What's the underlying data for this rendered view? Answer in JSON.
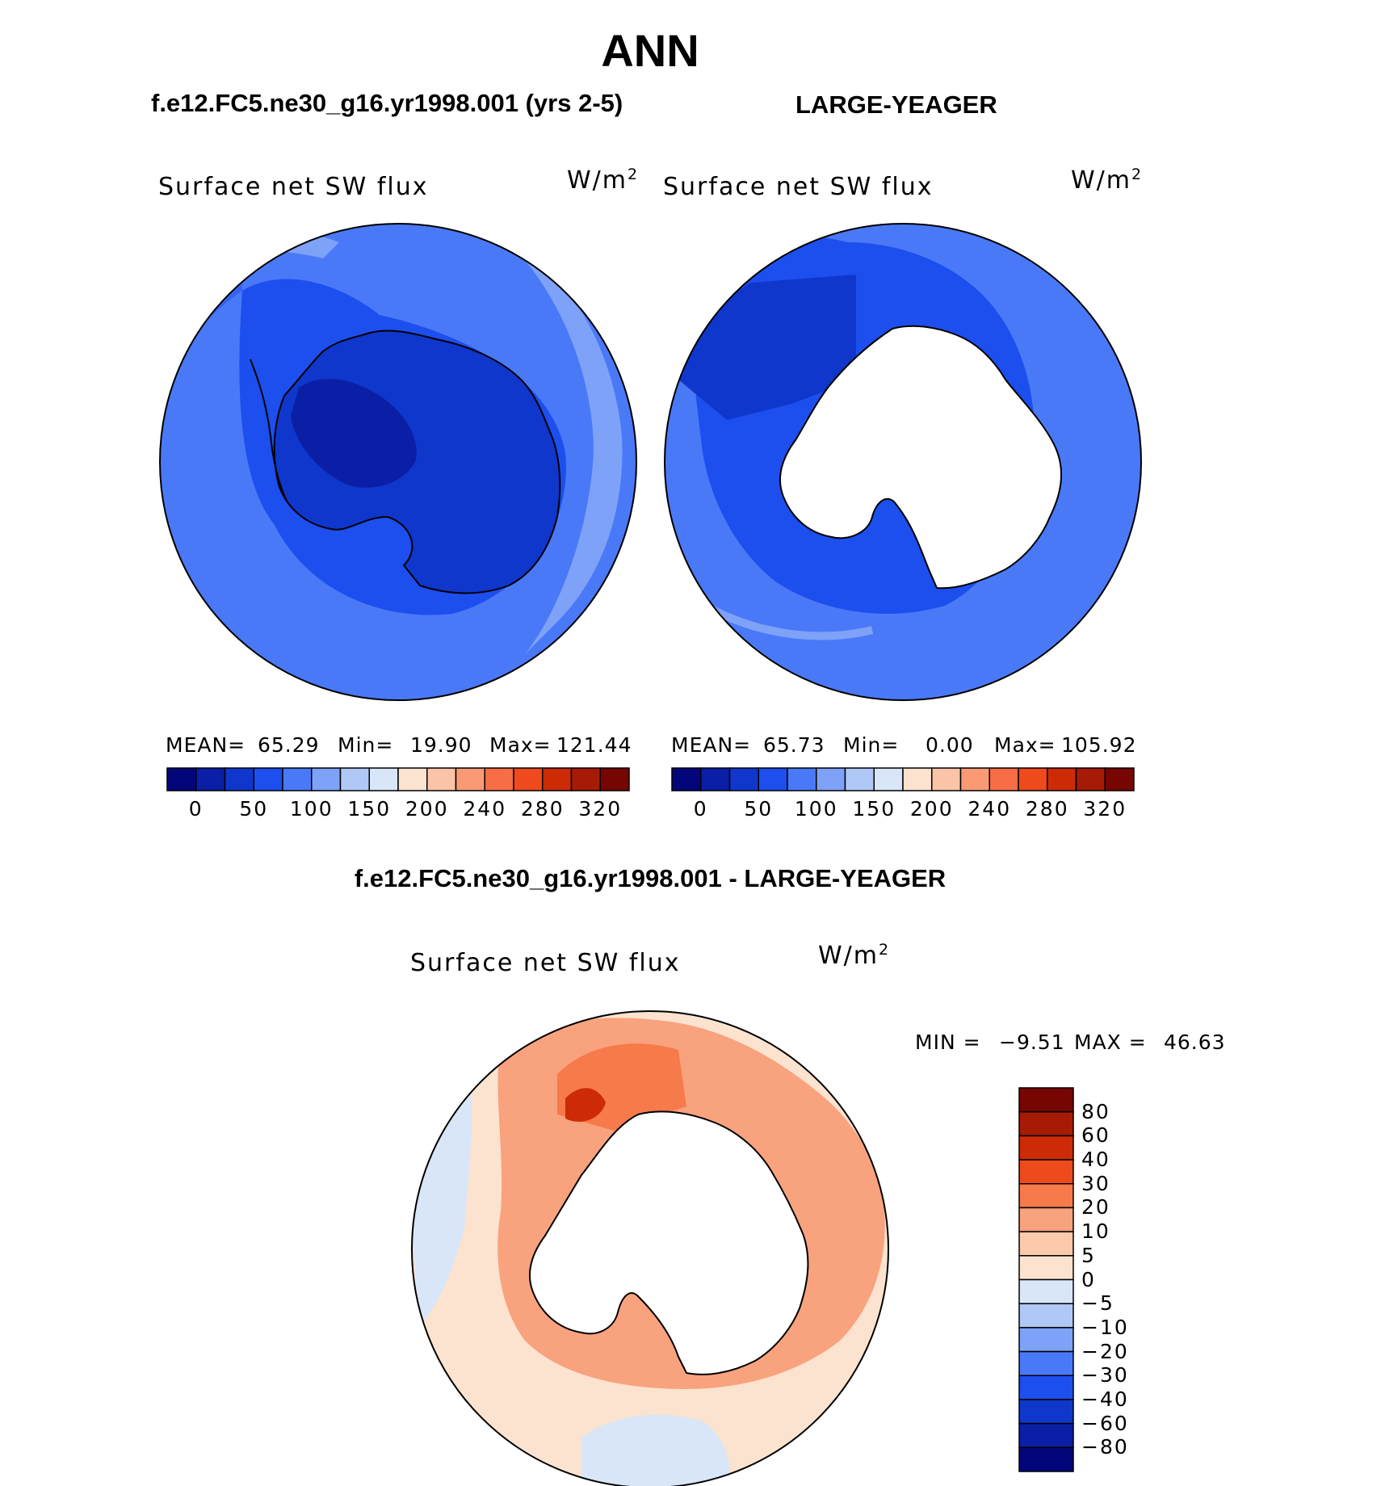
{
  "header": {
    "main_title": "ANN",
    "left_case": "f.e12.FC5.ne30_g16.yr1998.001 (yrs 2-5)",
    "right_case": "LARGE-YEAGER",
    "diff_title": "f.e12.FC5.ne30_g16.yr1998.001 - LARGE-YEAGER"
  },
  "panels": [
    {
      "variable": "Surface net SW flux",
      "units_base": "W/m",
      "units_sup": "2",
      "stats": {
        "mean_label": "MEAN=",
        "mean": "65.29",
        "min_label": "Min=",
        "min": "19.90",
        "max_label": "Max=",
        "max": "121.44"
      }
    },
    {
      "variable": "Surface net SW flux",
      "units_base": "W/m",
      "units_sup": "2",
      "stats": {
        "mean_label": "MEAN=",
        "mean": "65.73",
        "min_label": "Min=",
        "min": "0.00",
        "max_label": "Max=",
        "max": "105.92"
      }
    },
    {
      "variable": "Surface net SW flux",
      "units_base": "W/m",
      "units_sup": "2",
      "stats": {
        "min_label": "MIN =",
        "min": "−9.51",
        "max_label": "MAX =",
        "max": "46.63"
      }
    }
  ],
  "chart_data": [
    {
      "type": "heatmap",
      "projection": "south-polar-stereographic",
      "title": "Surface net SW flux",
      "units": "W/m2",
      "field_summary": {
        "mean": 65.29,
        "min": 19.9,
        "max": 121.44
      },
      "colorbar": {
        "orientation": "horizontal",
        "tick_labels": [
          "0",
          "50",
          "100",
          "150",
          "200",
          "240",
          "280",
          "320"
        ],
        "colors": [
          "#03067a",
          "#0a1fa6",
          "#0f37cc",
          "#1c4fee",
          "#4a79f8",
          "#7ea2f8",
          "#b0c8f6",
          "#d8e6f8",
          "#fbe3cf",
          "#fbc3a8",
          "#f99a75",
          "#f76d45",
          "#ee4a1c",
          "#cc2b05",
          "#a61b04",
          "#770502"
        ]
      }
    },
    {
      "type": "heatmap",
      "projection": "south-polar-stereographic",
      "title": "Surface net SW flux",
      "units": "W/m2",
      "field_summary": {
        "mean": 65.73,
        "min": 0.0,
        "max": 105.92
      },
      "colorbar": {
        "orientation": "horizontal",
        "tick_labels": [
          "0",
          "50",
          "100",
          "150",
          "200",
          "240",
          "280",
          "320"
        ],
        "colors": [
          "#03067a",
          "#0a1fa6",
          "#0f37cc",
          "#1c4fee",
          "#4a79f8",
          "#7ea2f8",
          "#b0c8f6",
          "#d8e6f8",
          "#fbe3cf",
          "#fbc3a8",
          "#f99a75",
          "#f76d45",
          "#ee4a1c",
          "#cc2b05",
          "#a61b04",
          "#770502"
        ]
      }
    },
    {
      "type": "heatmap",
      "projection": "south-polar-stereographic",
      "title": "Surface net SW flux",
      "units": "W/m2",
      "field_summary": {
        "min": -9.51,
        "max": 46.63
      },
      "colorbar": {
        "orientation": "vertical",
        "tick_labels": [
          "80",
          "60",
          "40",
          "30",
          "20",
          "10",
          "5",
          "0",
          "−5",
          "−10",
          "−20",
          "−30",
          "−40",
          "−60",
          "−80"
        ],
        "colors": [
          "#770502",
          "#a61b04",
          "#cc2b05",
          "#ee4a1c",
          "#f77a4a",
          "#f9a27e",
          "#fbc9ac",
          "#fbe3cf",
          "#d8e6f8",
          "#b0c8f6",
          "#7ea2f8",
          "#4a79f8",
          "#1c4fee",
          "#0f37cc",
          "#0a1fa6",
          "#03067a"
        ]
      }
    }
  ]
}
